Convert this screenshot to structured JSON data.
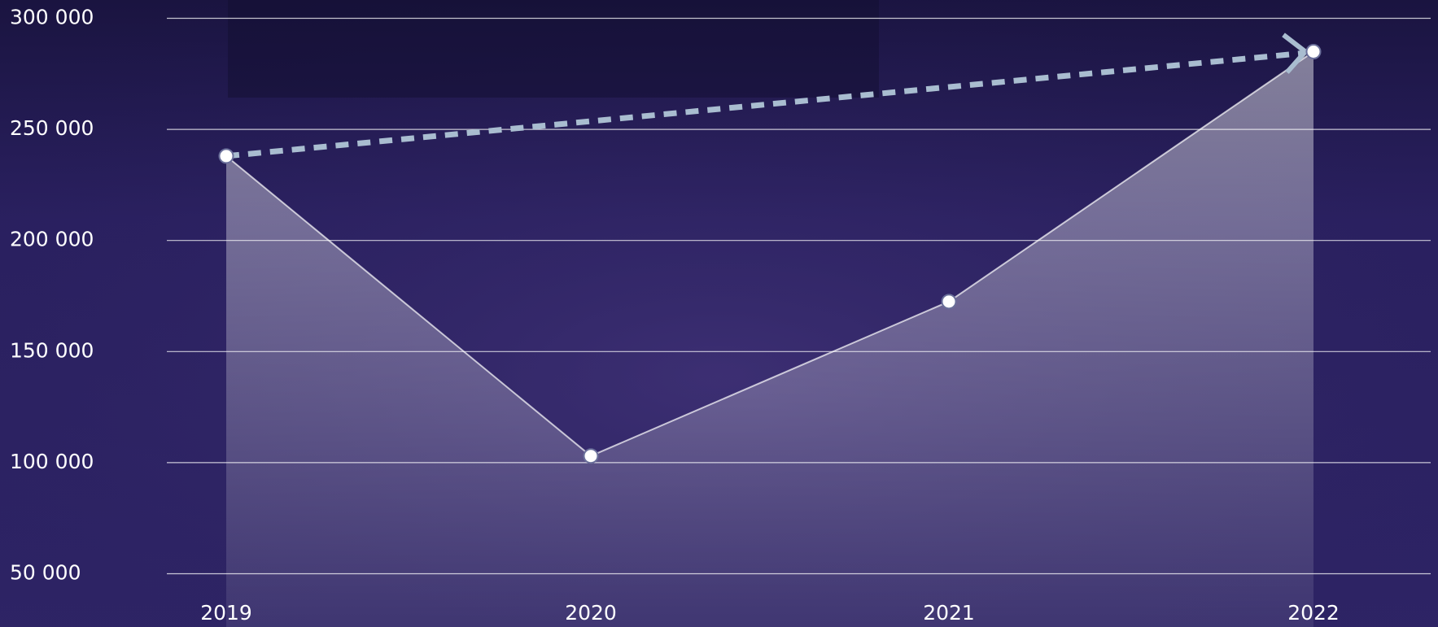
{
  "chart_data": {
    "type": "area-line",
    "categories": [
      "2019",
      "2020",
      "2021",
      "2022"
    ],
    "values": [
      238000,
      103000,
      172500,
      285000
    ],
    "color": "#ffffff",
    "trend_color": "#a9bdd0",
    "ylim": [
      25000,
      310000
    ],
    "yticks": [
      {
        "value": 50000,
        "label": "50 000"
      },
      {
        "value": 100000,
        "label": "100 000"
      },
      {
        "value": 150000,
        "label": "150 000"
      },
      {
        "value": 200000,
        "label": "200 000"
      },
      {
        "value": 250000,
        "label": "250 000"
      },
      {
        "value": 300000,
        "label": "300 000"
      }
    ],
    "grid": true
  }
}
